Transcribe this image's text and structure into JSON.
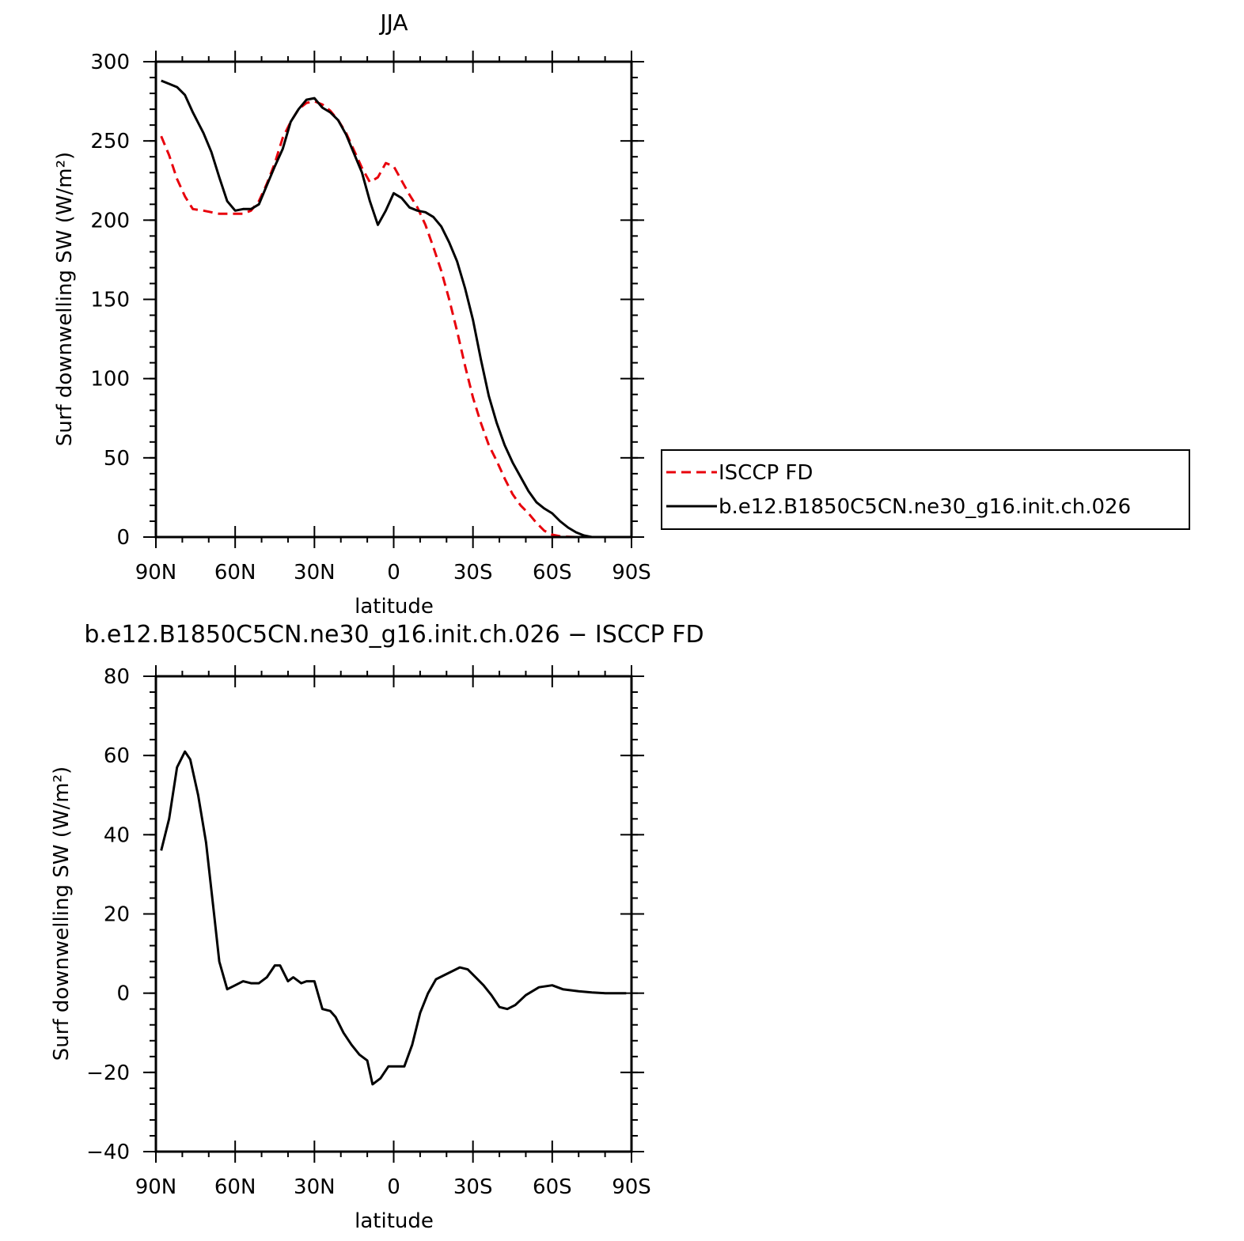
{
  "chart_data": [
    {
      "type": "line",
      "title": "JJA",
      "xlabel": "latitude",
      "ylabel": "Surf downwelling SW (W/m²)",
      "ylim": [
        0,
        300
      ],
      "xlim": [
        90,
        -90
      ],
      "x_ticks": [
        90,
        60,
        30,
        0,
        -30,
        -60,
        -90
      ],
      "x_tick_labels": [
        "90N",
        "60N",
        "30N",
        "0",
        "30S",
        "60S",
        "90S"
      ],
      "y_ticks": [
        0,
        50,
        100,
        150,
        200,
        250,
        300
      ],
      "y_tick_labels": [
        "0",
        "50",
        "100",
        "150",
        "200",
        "250",
        "300"
      ],
      "legend_position": "right",
      "series": [
        {
          "name": "ISCCP FD",
          "color": "#e8000b",
          "style": "dashed",
          "x": [
            88,
            85,
            82,
            79,
            76,
            72,
            69,
            66,
            63,
            60,
            57,
            54,
            51,
            48,
            45,
            42,
            39,
            36,
            33,
            30,
            27,
            24,
            21,
            18,
            15,
            12,
            9,
            6,
            3,
            0,
            -3,
            -6,
            -9,
            -12,
            -15,
            -18,
            -21,
            -24,
            -27,
            -30,
            -33,
            -36,
            -39,
            -42,
            -45,
            -48,
            -51,
            -54,
            -57,
            -60,
            -63,
            -66,
            -69,
            -72,
            -75,
            -78,
            -81,
            -84,
            -87,
            -89
          ],
          "y": [
            253,
            241,
            226,
            215,
            207,
            206,
            205,
            204,
            204,
            204,
            204,
            206,
            212,
            223,
            236,
            252,
            262,
            270,
            274,
            275,
            273,
            269,
            263,
            255,
            244,
            233,
            224,
            227,
            236,
            234,
            225,
            216,
            208,
            197,
            183,
            168,
            150,
            130,
            108,
            88,
            72,
            58,
            48,
            37,
            27,
            20,
            15,
            9,
            4,
            1.5,
            0.5,
            0.2,
            0,
            0,
            0,
            0,
            0,
            0,
            0,
            0
          ]
        },
        {
          "name": "b.e12.B1850C5CN.ne30_g16.init.ch.026",
          "color": "#000000",
          "style": "solid",
          "x": [
            88,
            85,
            82,
            79,
            76,
            72,
            69,
            66,
            63,
            60,
            57,
            54,
            51,
            48,
            45,
            42,
            39,
            36,
            33,
            30,
            27,
            24,
            21,
            18,
            15,
            12,
            9,
            6,
            3,
            0,
            -3,
            -6,
            -9,
            -12,
            -15,
            -18,
            -21,
            -24,
            -27,
            -30,
            -33,
            -36,
            -39,
            -42,
            -45,
            -48,
            -51,
            -54,
            -57,
            -60,
            -63,
            -66,
            -69,
            -72,
            -75,
            -78,
            -81,
            -84,
            -87,
            -89
          ],
          "y": [
            288,
            286,
            284,
            279,
            268,
            255,
            243,
            227,
            212,
            206,
            207,
            207,
            210,
            222,
            234,
            245,
            262,
            270,
            276,
            277,
            271,
            268,
            263,
            254,
            242,
            230,
            212,
            197,
            206,
            217,
            214,
            208,
            206,
            205,
            202,
            196,
            186,
            174,
            157,
            137,
            112,
            89,
            72,
            58,
            47,
            38,
            29,
            22,
            18,
            15,
            10,
            6,
            3,
            1,
            0,
            0,
            0,
            0,
            0,
            0
          ]
        }
      ]
    },
    {
      "type": "line",
      "title": "b.e12.B1850C5CN.ne30_g16.init.ch.026 − ISCCP FD",
      "xlabel": "latitude",
      "ylabel": "Surf downwelling SW (W/m²)",
      "ylim": [
        -40,
        80
      ],
      "xlim": [
        90,
        -90
      ],
      "x_ticks": [
        90,
        60,
        30,
        0,
        -30,
        -60,
        -90
      ],
      "x_tick_labels": [
        "90N",
        "60N",
        "30N",
        "0",
        "30S",
        "60S",
        "90S"
      ],
      "y_ticks": [
        -40,
        -20,
        0,
        20,
        40,
        60,
        80
      ],
      "y_tick_labels": [
        "−40",
        "−20",
        "0",
        "20",
        "40",
        "60",
        "80"
      ],
      "series": [
        {
          "color": "#000000",
          "style": "solid",
          "x": [
            88,
            85,
            82,
            79,
            77,
            74,
            71,
            68,
            66,
            63,
            60,
            57,
            54,
            51,
            48,
            45,
            43,
            40,
            38,
            35,
            33,
            30,
            27,
            24,
            22,
            19,
            16,
            13,
            10,
            8,
            5,
            2,
            -1,
            -4,
            -7,
            -10,
            -13,
            -16,
            -19,
            -22,
            -25,
            -28,
            -31,
            -34,
            -37,
            -40,
            -43,
            -46,
            -50,
            -55,
            -60,
            -64,
            -70,
            -75,
            -80,
            -84,
            -88
          ],
          "y": [
            36,
            44,
            57,
            61,
            59,
            50,
            38,
            20,
            8,
            1,
            2,
            3,
            2.5,
            2.5,
            4,
            7,
            7,
            3,
            4,
            2.5,
            3,
            3,
            -4,
            -4.5,
            -6,
            -10,
            -13,
            -15.5,
            -17,
            -23,
            -21.5,
            -18.5,
            -18.5,
            -18.5,
            -13,
            -5,
            0,
            3.5,
            4.5,
            5.5,
            6.5,
            6,
            4,
            2,
            -0.5,
            -3.5,
            -4,
            -3,
            -0.5,
            1.5,
            2,
            1,
            0.5,
            0.2,
            0,
            0,
            0
          ]
        }
      ]
    }
  ]
}
